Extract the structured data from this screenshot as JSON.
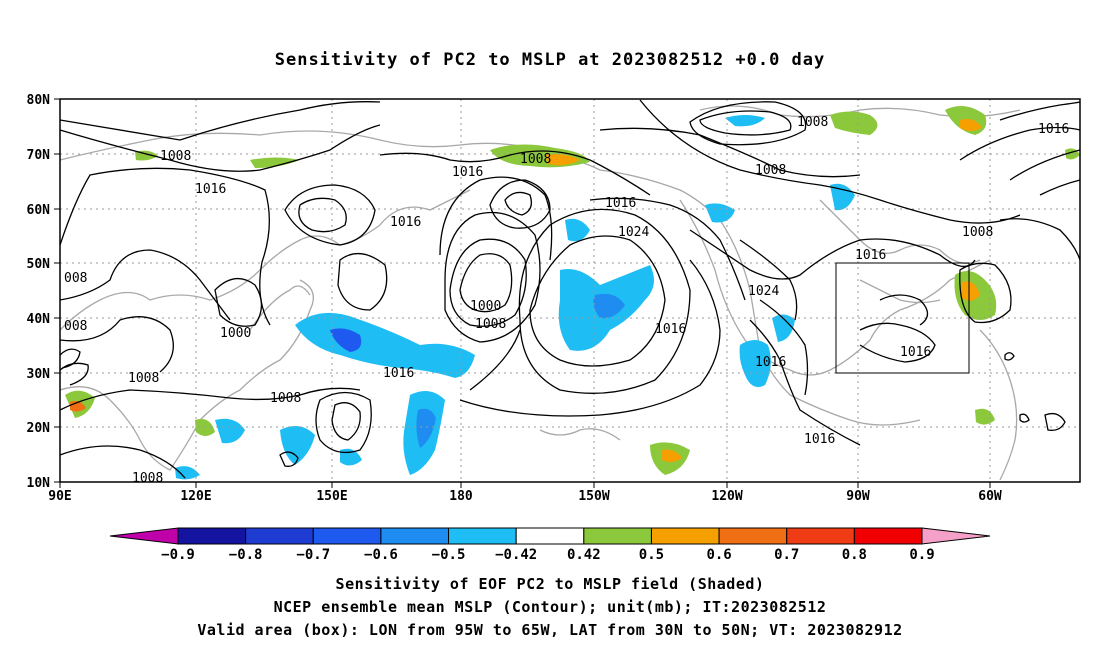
{
  "title": "Sensitivity of PC2 to MSLP at 2023082512 +0.0 day",
  "lat_ticks": [
    "80N",
    "70N",
    "60N",
    "50N",
    "40N",
    "30N",
    "20N",
    "10N"
  ],
  "lon_ticks": [
    "90E",
    "120E",
    "150E",
    "180",
    "150W",
    "120W",
    "90W",
    "60W"
  ],
  "contour_labels": [
    "1008",
    "1016",
    "1000",
    "1008",
    "1016",
    "1008",
    "1016",
    "1016",
    "1008",
    "008",
    "008",
    "1008",
    "1016",
    "1000",
    "1008",
    "1024",
    "1016",
    "1016",
    "1024",
    "1016",
    "1016",
    "1016",
    "1008",
    "1008",
    "1008"
  ],
  "colorbar": {
    "labels": [
      "-0.9",
      "-0.8",
      "-0.7",
      "-0.6",
      "-0.5",
      "-0.42",
      "0.42",
      "0.5",
      "0.6",
      "0.7",
      "0.8",
      "0.9"
    ],
    "colors": [
      "#c000a8",
      "#1414a0",
      "#1e3cd2",
      "#1e5af0",
      "#1e8cf0",
      "#1ebef5",
      "#ffffff",
      "#8cc83c",
      "#f5a000",
      "#f06e14",
      "#f03c14",
      "#f00000",
      "#f5a0c8"
    ]
  },
  "valid_box": {
    "lon": [
      "95W",
      "65W"
    ],
    "lat": [
      "30N",
      "50N"
    ]
  },
  "captions": [
    "Sensitivity of EOF PC2 to MSLP field (Shaded)",
    "NCEP ensemble mean MSLP (Contour); unit(mb); IT:2023082512",
    "Valid area (box): LON from 95W to 65W, LAT from 30N to 50N; VT: 2023082912"
  ]
}
